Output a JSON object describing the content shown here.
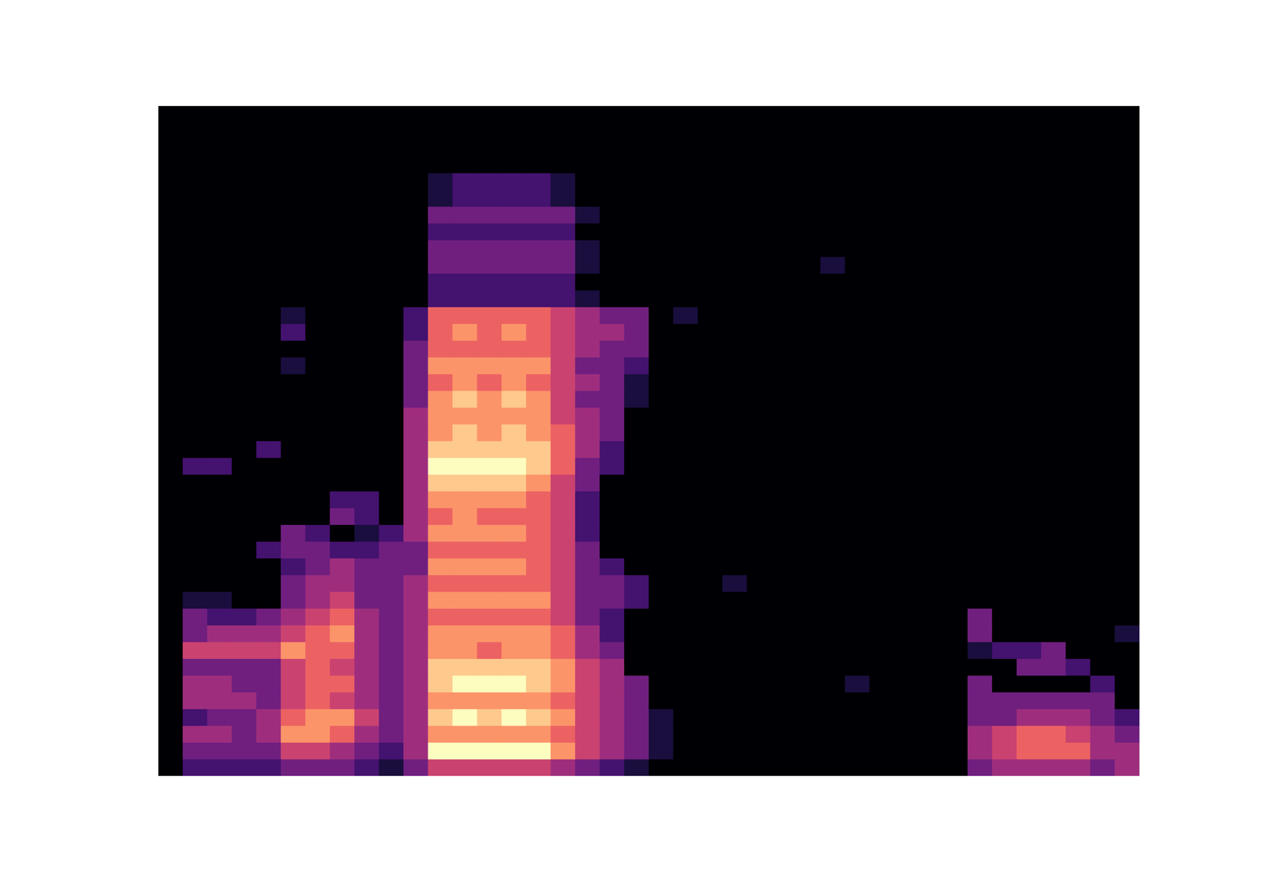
{
  "chart_data": {
    "type": "heatmap",
    "tick_labels": false,
    "xlim": [
      0,
      40
    ],
    "ylim": [
      0,
      40
    ],
    "zlim": [
      0,
      9
    ],
    "cells": [
      [
        0,
        2,
        2,
        2,
        2,
        3,
        3,
        3,
        2,
        1,
        3,
        5,
        5,
        5,
        5,
        5,
        4,
        3,
        2,
        1,
        0,
        0,
        0,
        0,
        0,
        0,
        0,
        0,
        0,
        0,
        0,
        0,
        0,
        3,
        4,
        4,
        4,
        4,
        3,
        4
      ],
      [
        0,
        3,
        3,
        3,
        3,
        5,
        5,
        4,
        3,
        2,
        4,
        9,
        9,
        9,
        9,
        9,
        7,
        5,
        4,
        3,
        1,
        0,
        0,
        0,
        0,
        0,
        0,
        0,
        0,
        0,
        0,
        0,
        0,
        4,
        5,
        6,
        6,
        6,
        4,
        4
      ],
      [
        0,
        4,
        4,
        3,
        4,
        7,
        7,
        6,
        4,
        3,
        4,
        7,
        7,
        7,
        7,
        7,
        6,
        5,
        4,
        3,
        1,
        0,
        0,
        0,
        0,
        0,
        0,
        0,
        0,
        0,
        0,
        0,
        0,
        4,
        5,
        6,
        6,
        5,
        4,
        3
      ],
      [
        0,
        2,
        3,
        3,
        4,
        6,
        7,
        7,
        5,
        3,
        4,
        8,
        9,
        8,
        9,
        8,
        7,
        5,
        4,
        3,
        1,
        0,
        0,
        0,
        0,
        0,
        0,
        0,
        0,
        0,
        0,
        0,
        0,
        3,
        3,
        4,
        4,
        4,
        3,
        2
      ],
      [
        0,
        4,
        4,
        4,
        3,
        5,
        6,
        5,
        4,
        3,
        4,
        7,
        7,
        7,
        7,
        7,
        6,
        5,
        4,
        3,
        0,
        0,
        0,
        0,
        0,
        0,
        0,
        0,
        0,
        0,
        0,
        0,
        0,
        3,
        3,
        3,
        3,
        3,
        3,
        0
      ],
      [
        0,
        4,
        4,
        3,
        3,
        5,
        6,
        6,
        4,
        3,
        4,
        8,
        9,
        9,
        9,
        8,
        7,
        5,
        4,
        3,
        0,
        0,
        0,
        0,
        0,
        0,
        0,
        0,
        1,
        0,
        0,
        0,
        0,
        3,
        0,
        0,
        0,
        0,
        2,
        0
      ],
      [
        0,
        3,
        3,
        3,
        3,
        5,
        6,
        5,
        4,
        3,
        4,
        8,
        8,
        8,
        8,
        8,
        7,
        5,
        4,
        0,
        0,
        0,
        0,
        0,
        0,
        0,
        0,
        0,
        0,
        0,
        0,
        0,
        0,
        0,
        0,
        3,
        3,
        2,
        0,
        0
      ],
      [
        0,
        5,
        5,
        5,
        5,
        7,
        6,
        6,
        4,
        3,
        4,
        7,
        7,
        6,
        7,
        7,
        6,
        4,
        3,
        0,
        0,
        0,
        0,
        0,
        0,
        0,
        0,
        0,
        0,
        0,
        0,
        0,
        0,
        1,
        2,
        2,
        3,
        0,
        0,
        0
      ],
      [
        0,
        3,
        4,
        4,
        4,
        5,
        6,
        7,
        4,
        3,
        4,
        7,
        7,
        7,
        7,
        7,
        6,
        4,
        2,
        0,
        0,
        0,
        0,
        0,
        0,
        0,
        0,
        0,
        0,
        0,
        0,
        0,
        0,
        3,
        0,
        0,
        0,
        0,
        0,
        1
      ],
      [
        0,
        3,
        2,
        2,
        3,
        4,
        5,
        6,
        4,
        3,
        4,
        6,
        6,
        6,
        6,
        6,
        5,
        3,
        2,
        0,
        0,
        0,
        0,
        0,
        0,
        0,
        0,
        0,
        0,
        0,
        0,
        0,
        0,
        3,
        0,
        0,
        0,
        0,
        0,
        0
      ],
      [
        0,
        1,
        1,
        0,
        0,
        3,
        4,
        5,
        3,
        3,
        4,
        7,
        7,
        7,
        7,
        7,
        5,
        3,
        3,
        2,
        0,
        0,
        0,
        0,
        0,
        0,
        0,
        0,
        0,
        0,
        0,
        0,
        0,
        0,
        0,
        0,
        0,
        0,
        0,
        0
      ],
      [
        0,
        0,
        0,
        0,
        0,
        3,
        4,
        4,
        3,
        3,
        4,
        6,
        6,
        6,
        6,
        6,
        5,
        3,
        3,
        2,
        0,
        0,
        0,
        1,
        0,
        0,
        0,
        0,
        0,
        0,
        0,
        0,
        0,
        0,
        0,
        0,
        0,
        0,
        0,
        0
      ],
      [
        0,
        0,
        0,
        0,
        0,
        2,
        3,
        4,
        3,
        3,
        3,
        7,
        7,
        7,
        7,
        6,
        5,
        3,
        2,
        0,
        0,
        0,
        0,
        0,
        0,
        0,
        0,
        0,
        0,
        0,
        0,
        0,
        0,
        0,
        0,
        0,
        0,
        0,
        0,
        0
      ],
      [
        0,
        0,
        0,
        0,
        2,
        3,
        3,
        2,
        2,
        3,
        3,
        6,
        6,
        6,
        6,
        6,
        5,
        3,
        0,
        0,
        0,
        0,
        0,
        0,
        0,
        0,
        0,
        0,
        0,
        0,
        0,
        0,
        0,
        0,
        0,
        0,
        0,
        0,
        0,
        0
      ],
      [
        0,
        0,
        0,
        0,
        0,
        3,
        2,
        0,
        1,
        2,
        4,
        7,
        7,
        7,
        7,
        6,
        5,
        2,
        0,
        0,
        0,
        0,
        0,
        0,
        0,
        0,
        0,
        0,
        0,
        0,
        0,
        0,
        0,
        0,
        0,
        0,
        0,
        0,
        0,
        0
      ],
      [
        0,
        0,
        0,
        0,
        0,
        0,
        0,
        3,
        2,
        0,
        4,
        6,
        7,
        6,
        6,
        6,
        5,
        2,
        0,
        0,
        0,
        0,
        0,
        0,
        0,
        0,
        0,
        0,
        0,
        0,
        0,
        0,
        0,
        0,
        0,
        0,
        0,
        0,
        0,
        0
      ],
      [
        0,
        0,
        0,
        0,
        0,
        0,
        0,
        2,
        2,
        0,
        4,
        7,
        7,
        7,
        7,
        6,
        5,
        2,
        0,
        0,
        0,
        0,
        0,
        0,
        0,
        0,
        0,
        0,
        0,
        0,
        0,
        0,
        0,
        0,
        0,
        0,
        0,
        0,
        0,
        0
      ],
      [
        0,
        0,
        0,
        0,
        0,
        0,
        0,
        0,
        0,
        0,
        4,
        8,
        8,
        8,
        8,
        7,
        5,
        3,
        0,
        0,
        0,
        0,
        0,
        0,
        0,
        0,
        0,
        0,
        0,
        0,
        0,
        0,
        0,
        0,
        0,
        0,
        0,
        0,
        0,
        0
      ],
      [
        0,
        2,
        2,
        0,
        0,
        0,
        0,
        0,
        0,
        0,
        4,
        9,
        9,
        9,
        9,
        8,
        6,
        3,
        2,
        0,
        0,
        0,
        0,
        0,
        0,
        0,
        0,
        0,
        0,
        0,
        0,
        0,
        0,
        0,
        0,
        0,
        0,
        0,
        0,
        0
      ],
      [
        0,
        0,
        0,
        0,
        2,
        0,
        0,
        0,
        0,
        0,
        4,
        8,
        8,
        8,
        8,
        8,
        6,
        4,
        2,
        0,
        0,
        0,
        0,
        0,
        0,
        0,
        0,
        0,
        0,
        0,
        0,
        0,
        0,
        0,
        0,
        0,
        0,
        0,
        0,
        0
      ],
      [
        0,
        0,
        0,
        0,
        0,
        0,
        0,
        0,
        0,
        0,
        4,
        7,
        8,
        7,
        8,
        7,
        6,
        4,
        3,
        0,
        0,
        0,
        0,
        0,
        0,
        0,
        0,
        0,
        0,
        0,
        0,
        0,
        0,
        0,
        0,
        0,
        0,
        0,
        0,
        0
      ],
      [
        0,
        0,
        0,
        0,
        0,
        0,
        0,
        0,
        0,
        0,
        4,
        7,
        7,
        7,
        7,
        7,
        5,
        4,
        3,
        0,
        0,
        0,
        0,
        0,
        0,
        0,
        0,
        0,
        0,
        0,
        0,
        0,
        0,
        0,
        0,
        0,
        0,
        0,
        0,
        0
      ],
      [
        0,
        0,
        0,
        0,
        0,
        0,
        0,
        0,
        0,
        0,
        3,
        7,
        8,
        7,
        8,
        7,
        5,
        3,
        3,
        1,
        0,
        0,
        0,
        0,
        0,
        0,
        0,
        0,
        0,
        0,
        0,
        0,
        0,
        0,
        0,
        0,
        0,
        0,
        0,
        0
      ],
      [
        0,
        0,
        0,
        0,
        0,
        0,
        0,
        0,
        0,
        0,
        3,
        6,
        7,
        6,
        7,
        6,
        5,
        4,
        3,
        1,
        0,
        0,
        0,
        0,
        0,
        0,
        0,
        0,
        0,
        0,
        0,
        0,
        0,
        0,
        0,
        0,
        0,
        0,
        0,
        0
      ],
      [
        0,
        0,
        0,
        0,
        0,
        1,
        0,
        0,
        0,
        0,
        3,
        7,
        7,
        7,
        7,
        7,
        5,
        3,
        3,
        2,
        0,
        0,
        0,
        0,
        0,
        0,
        0,
        0,
        0,
        0,
        0,
        0,
        0,
        0,
        0,
        0,
        0,
        0,
        0,
        0
      ],
      [
        0,
        0,
        0,
        0,
        0,
        0,
        0,
        0,
        0,
        0,
        3,
        6,
        6,
        6,
        6,
        6,
        5,
        4,
        3,
        3,
        0,
        0,
        0,
        0,
        0,
        0,
        0,
        0,
        0,
        0,
        0,
        0,
        0,
        0,
        0,
        0,
        0,
        0,
        0,
        0
      ],
      [
        0,
        0,
        0,
        0,
        0,
        2,
        0,
        0,
        0,
        0,
        2,
        6,
        7,
        6,
        7,
        6,
        5,
        4,
        4,
        3,
        0,
        0,
        0,
        0,
        0,
        0,
        0,
        0,
        0,
        0,
        0,
        0,
        0,
        0,
        0,
        0,
        0,
        0,
        0,
        0
      ],
      [
        0,
        0,
        0,
        0,
        0,
        1,
        0,
        0,
        0,
        0,
        2,
        6,
        6,
        6,
        6,
        6,
        5,
        4,
        3,
        3,
        0,
        1,
        0,
        0,
        0,
        0,
        0,
        0,
        0,
        0,
        0,
        0,
        0,
        0,
        0,
        0,
        0,
        0,
        0,
        0
      ],
      [
        0,
        0,
        0,
        0,
        0,
        0,
        0,
        0,
        0,
        0,
        0,
        2,
        2,
        2,
        2,
        2,
        2,
        1,
        0,
        0,
        0,
        0,
        0,
        0,
        0,
        0,
        0,
        0,
        0,
        0,
        0,
        0,
        0,
        0,
        0,
        0,
        0,
        0,
        0,
        0
      ],
      [
        0,
        0,
        0,
        0,
        0,
        0,
        0,
        0,
        0,
        0,
        0,
        2,
        2,
        2,
        2,
        2,
        2,
        0,
        0,
        0,
        0,
        0,
        0,
        0,
        0,
        0,
        0,
        0,
        0,
        0,
        0,
        0,
        0,
        0,
        0,
        0,
        0,
        0,
        0,
        0
      ],
      [
        0,
        0,
        0,
        0,
        0,
        0,
        0,
        0,
        0,
        0,
        0,
        3,
        3,
        3,
        3,
        3,
        3,
        1,
        0,
        0,
        0,
        0,
        0,
        0,
        0,
        0,
        0,
        1,
        0,
        0,
        0,
        0,
        0,
        0,
        0,
        0,
        0,
        0,
        0,
        0
      ],
      [
        0,
        0,
        0,
        0,
        0,
        0,
        0,
        0,
        0,
        0,
        0,
        3,
        3,
        3,
        3,
        3,
        3,
        1,
        0,
        0,
        0,
        0,
        0,
        0,
        0,
        0,
        0,
        0,
        0,
        0,
        0,
        0,
        0,
        0,
        0,
        0,
        0,
        0,
        0,
        0
      ],
      [
        0,
        0,
        0,
        0,
        0,
        0,
        0,
        0,
        0,
        0,
        0,
        2,
        2,
        2,
        2,
        2,
        2,
        0,
        0,
        0,
        0,
        0,
        0,
        0,
        0,
        0,
        0,
        0,
        0,
        0,
        0,
        0,
        0,
        0,
        0,
        0,
        0,
        0,
        0,
        0
      ],
      [
        0,
        0,
        0,
        0,
        0,
        0,
        0,
        0,
        0,
        0,
        0,
        3,
        3,
        3,
        3,
        3,
        3,
        1,
        0,
        0,
        0,
        0,
        0,
        0,
        0,
        0,
        0,
        0,
        0,
        0,
        0,
        0,
        0,
        0,
        0,
        0,
        0,
        0,
        0,
        0
      ],
      [
        0,
        0,
        0,
        0,
        0,
        0,
        0,
        0,
        0,
        0,
        0,
        1,
        2,
        2,
        2,
        2,
        1,
        0,
        0,
        0,
        0,
        0,
        0,
        0,
        0,
        0,
        0,
        0,
        0,
        0,
        0,
        0,
        0,
        0,
        0,
        0,
        0,
        0,
        0,
        0
      ],
      [
        0,
        0,
        0,
        0,
        0,
        0,
        0,
        0,
        0,
        0,
        0,
        1,
        2,
        2,
        2,
        2,
        1,
        0,
        0,
        0,
        0,
        0,
        0,
        0,
        0,
        0,
        0,
        0,
        0,
        0,
        0,
        0,
        0,
        0,
        0,
        0,
        0,
        0,
        0,
        0
      ],
      [
        0,
        0,
        0,
        0,
        0,
        0,
        0,
        0,
        0,
        0,
        0,
        0,
        0,
        0,
        0,
        0,
        0,
        0,
        0,
        0,
        0,
        0,
        0,
        0,
        0,
        0,
        0,
        0,
        0,
        0,
        0,
        0,
        0,
        0,
        0,
        0,
        0,
        0,
        0,
        0
      ],
      [
        0,
        0,
        0,
        0,
        0,
        0,
        0,
        0,
        0,
        0,
        0,
        0,
        0,
        0,
        0,
        0,
        0,
        0,
        0,
        0,
        0,
        0,
        0,
        0,
        0,
        0,
        0,
        0,
        0,
        0,
        0,
        0,
        0,
        0,
        0,
        0,
        0,
        0,
        0,
        0
      ],
      [
        0,
        0,
        0,
        0,
        0,
        0,
        0,
        0,
        0,
        0,
        0,
        0,
        0,
        0,
        0,
        0,
        0,
        0,
        0,
        0,
        0,
        0,
        0,
        0,
        0,
        0,
        0,
        0,
        0,
        0,
        0,
        0,
        0,
        0,
        0,
        0,
        0,
        0,
        0,
        0
      ],
      [
        0,
        0,
        0,
        0,
        0,
        0,
        0,
        0,
        0,
        0,
        0,
        0,
        0,
        0,
        0,
        0,
        0,
        0,
        0,
        0,
        0,
        0,
        0,
        0,
        0,
        0,
        0,
        0,
        0,
        0,
        0,
        0,
        0,
        0,
        0,
        0,
        0,
        0,
        0,
        0
      ]
    ]
  }
}
